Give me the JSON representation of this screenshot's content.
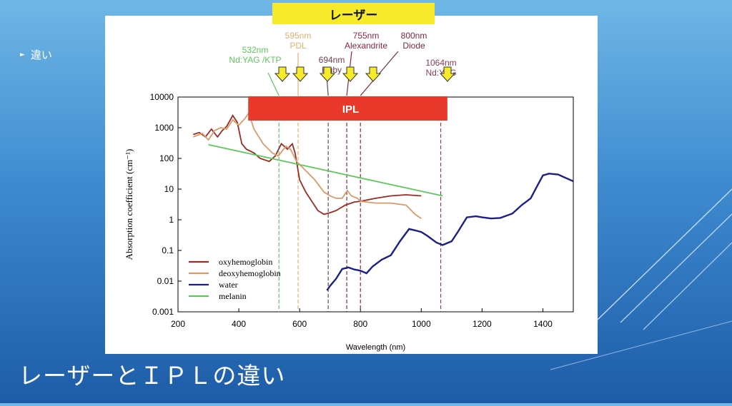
{
  "slide": {
    "bullet_text": "違い",
    "title": "レーザーとＩＰＬの違い",
    "laser_banner": "レーザー",
    "ipl_label": "IPL"
  },
  "colors": {
    "oxyhemoglobin": "#9b2a22",
    "deoxyhemoglobin": "#d99a6a",
    "water": "#1b1f86",
    "melanin": "#5cc85a",
    "ipl_bar": "#e8392a",
    "arrow_fill": "#f7ea2b"
  },
  "chart_data": {
    "type": "line",
    "title": "",
    "xlabel": "Wavelength (nm)",
    "ylabel": "Absorption coefficient (cm⁻¹)",
    "xlim": [
      200,
      1500
    ],
    "ylim": [
      0.001,
      10000
    ],
    "yscale": "log",
    "x_ticks": [
      "200",
      "400",
      "600",
      "800",
      "1000",
      "1200",
      "1400"
    ],
    "y_ticks": [
      "10000",
      "1000",
      "100",
      "10",
      "1",
      "0.1",
      "0.01",
      "0.001"
    ],
    "legend_position": "bottom-left",
    "series": [
      {
        "name": "oxyhemoglobin",
        "points": [
          [
            250,
            600
          ],
          [
            270,
            700
          ],
          [
            290,
            500
          ],
          [
            310,
            900
          ],
          [
            330,
            500
          ],
          [
            345,
            800
          ],
          [
            360,
            1100
          ],
          [
            380,
            2500
          ],
          [
            395,
            1500
          ],
          [
            410,
            300
          ],
          [
            425,
            200
          ],
          [
            450,
            150
          ],
          [
            470,
            100
          ],
          [
            500,
            80
          ],
          [
            520,
            120
          ],
          [
            540,
            300
          ],
          [
            560,
            200
          ],
          [
            576,
            300
          ],
          [
            585,
            150
          ],
          [
            600,
            20
          ],
          [
            620,
            8
          ],
          [
            640,
            4
          ],
          [
            660,
            2
          ],
          [
            680,
            1.5
          ],
          [
            700,
            1.7
          ],
          [
            720,
            2
          ],
          [
            750,
            3
          ],
          [
            780,
            3.8
          ],
          [
            800,
            4
          ],
          [
            850,
            5
          ],
          [
            900,
            6
          ],
          [
            950,
            6.5
          ],
          [
            1000,
            6
          ]
        ]
      },
      {
        "name": "deoxyhemoglobin",
        "points": [
          [
            250,
            500
          ],
          [
            280,
            650
          ],
          [
            300,
            400
          ],
          [
            320,
            800
          ],
          [
            340,
            1000
          ],
          [
            360,
            900
          ],
          [
            380,
            1800
          ],
          [
            400,
            1200
          ],
          [
            420,
            2000
          ],
          [
            433,
            3000
          ],
          [
            450,
            900
          ],
          [
            480,
            300
          ],
          [
            510,
            150
          ],
          [
            530,
            120
          ],
          [
            555,
            250
          ],
          [
            570,
            200
          ],
          [
            590,
            80
          ],
          [
            620,
            40
          ],
          [
            650,
            20
          ],
          [
            680,
            8
          ],
          [
            700,
            6
          ],
          [
            720,
            5
          ],
          [
            740,
            5
          ],
          [
            757,
            9
          ],
          [
            770,
            6
          ],
          [
            790,
            5
          ],
          [
            800,
            4
          ],
          [
            850,
            3.5
          ],
          [
            900,
            3.5
          ],
          [
            950,
            3
          ],
          [
            980,
            1.5
          ],
          [
            1000,
            1.1
          ]
        ]
      },
      {
        "name": "water",
        "points": [
          [
            690,
            0.005
          ],
          [
            700,
            0.007
          ],
          [
            720,
            0.012
          ],
          [
            740,
            0.025
          ],
          [
            760,
            0.028
          ],
          [
            780,
            0.024
          ],
          [
            800,
            0.022
          ],
          [
            820,
            0.018
          ],
          [
            840,
            0.03
          ],
          [
            870,
            0.05
          ],
          [
            900,
            0.07
          ],
          [
            930,
            0.2
          ],
          [
            960,
            0.5
          ],
          [
            980,
            0.45
          ],
          [
            1000,
            0.4
          ],
          [
            1020,
            0.3
          ],
          [
            1050,
            0.18
          ],
          [
            1070,
            0.15
          ],
          [
            1100,
            0.2
          ],
          [
            1120,
            0.4
          ],
          [
            1150,
            1.2
          ],
          [
            1180,
            1.3
          ],
          [
            1200,
            1.2
          ],
          [
            1230,
            1.1
          ],
          [
            1260,
            1.15
          ],
          [
            1300,
            1.6
          ],
          [
            1330,
            3
          ],
          [
            1360,
            5
          ],
          [
            1380,
            12
          ],
          [
            1400,
            28
          ],
          [
            1420,
            32
          ],
          [
            1450,
            30
          ],
          [
            1480,
            22
          ],
          [
            1500,
            18
          ]
        ]
      },
      {
        "name": "melanin",
        "points": [
          [
            300,
            280
          ],
          [
            1070,
            6
          ]
        ]
      }
    ],
    "wavelength_markers": [
      {
        "wavelength": 532,
        "label": "532nm",
        "sublabel": "Nd:YAG /KTP",
        "color": "#5cc85a"
      },
      {
        "wavelength": 595,
        "label": "595nm",
        "sublabel": "PDL",
        "color": "#e0b070"
      },
      {
        "wavelength": 694,
        "label": "694nm",
        "sublabel": "Ruby",
        "color": "#704050"
      },
      {
        "wavelength": 755,
        "label": "755nm",
        "sublabel": "Alexandrite",
        "color": "#8a2a3a"
      },
      {
        "wavelength": 800,
        "label": "800nm",
        "sublabel": "Diode",
        "color": "#7a2a3a"
      },
      {
        "wavelength": 1064,
        "label": "1064nm",
        "sublabel": "Nd:YAG",
        "color": "#8a3a5a"
      }
    ],
    "ipl_range": [
      445,
      1100
    ]
  }
}
